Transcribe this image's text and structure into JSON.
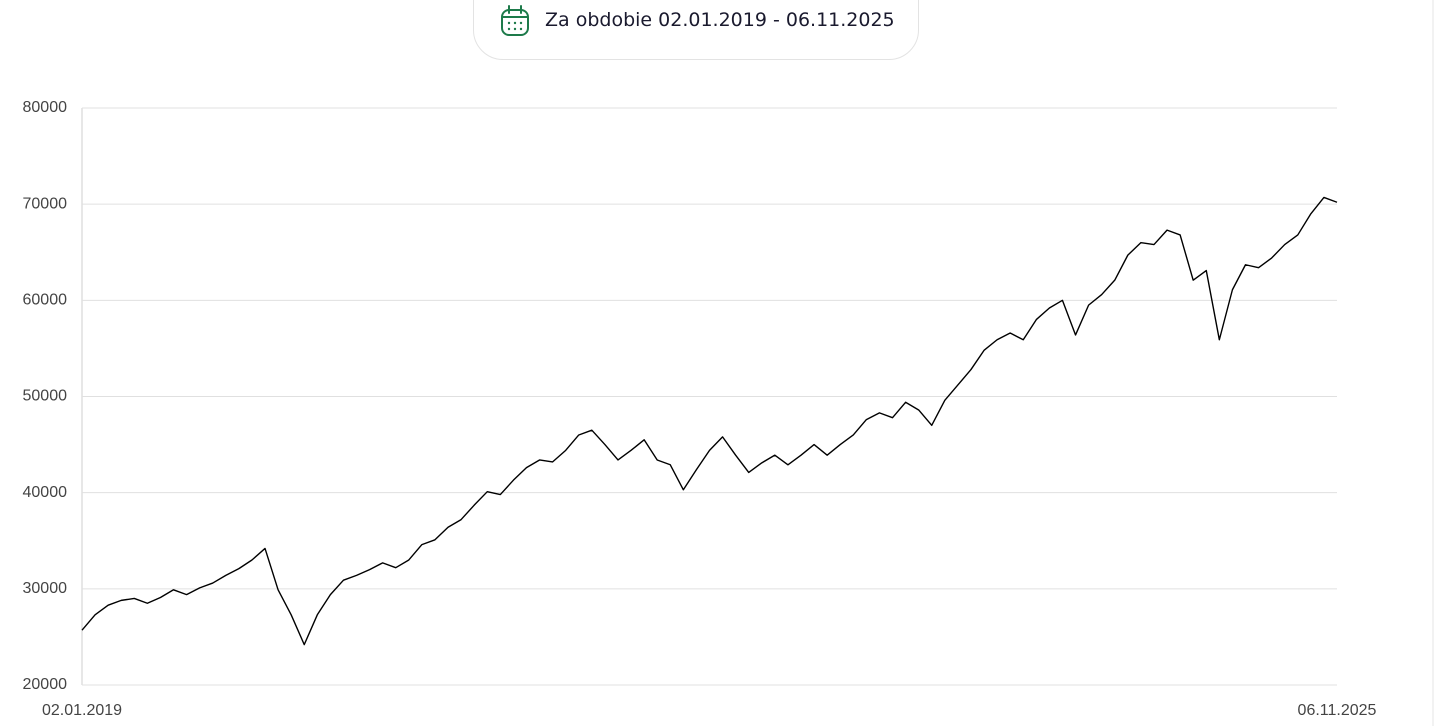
{
  "button": {
    "label": "Za obdobie 02.01.2019 - 06.11.2025"
  },
  "chart_data": {
    "type": "line",
    "categories": [
      "02.01.2019",
      null,
      null,
      null,
      null,
      null,
      null,
      null,
      null,
      null,
      null,
      null,
      null,
      null,
      null,
      null,
      null,
      null,
      null,
      null,
      null,
      null,
      null,
      null,
      null,
      null,
      null,
      null,
      null,
      null,
      null,
      null,
      null,
      null,
      null,
      null,
      null,
      null,
      null,
      null,
      null,
      null,
      null,
      null,
      null,
      null,
      null,
      null,
      null,
      null,
      null,
      null,
      null,
      null,
      null,
      null,
      null,
      null,
      null,
      null,
      null,
      null,
      null,
      null,
      null,
      null,
      null,
      null,
      null,
      null,
      null,
      null,
      null,
      null,
      null,
      null,
      null,
      null,
      null,
      null,
      null,
      null,
      null,
      null,
      null,
      null,
      null,
      null,
      null,
      null,
      null,
      null,
      null,
      null,
      null,
      null,
      "06.11.2025"
    ],
    "series": [
      {
        "color": "#000000",
        "values": [
          25700,
          27300,
          28300,
          28800,
          29000,
          28500,
          29100,
          29900,
          29400,
          30100,
          30600,
          31400,
          32100,
          33000,
          34200,
          29900,
          27300,
          24200,
          27300,
          29400,
          30900,
          31400,
          32000,
          32700,
          32200,
          33000,
          34600,
          35100,
          36400,
          37200,
          38700,
          40100,
          39800,
          41300,
          42600,
          43400,
          43200,
          44400,
          46000,
          46500,
          45000,
          43400,
          44400,
          45500,
          43400,
          42900,
          40300,
          42400,
          44400,
          45800,
          43900,
          42100,
          43100,
          43900,
          42900,
          43900,
          45000,
          43900,
          45000,
          46000,
          47600,
          48300,
          47800,
          49400,
          48600,
          47000,
          49600,
          51200,
          52800,
          54800,
          55900,
          56600,
          55900,
          58000,
          59200,
          60000,
          56400,
          59500,
          60600,
          62100,
          64700,
          66000,
          65800,
          67300,
          66800,
          62100,
          63100,
          55900,
          61100,
          63700,
          63400,
          64400,
          65800,
          66800,
          69000,
          70700,
          70200
        ]
      }
    ],
    "ylim": [
      20000,
      80000
    ],
    "yticks": [
      20000,
      30000,
      40000,
      50000,
      60000,
      70000,
      80000
    ],
    "grid": true
  }
}
